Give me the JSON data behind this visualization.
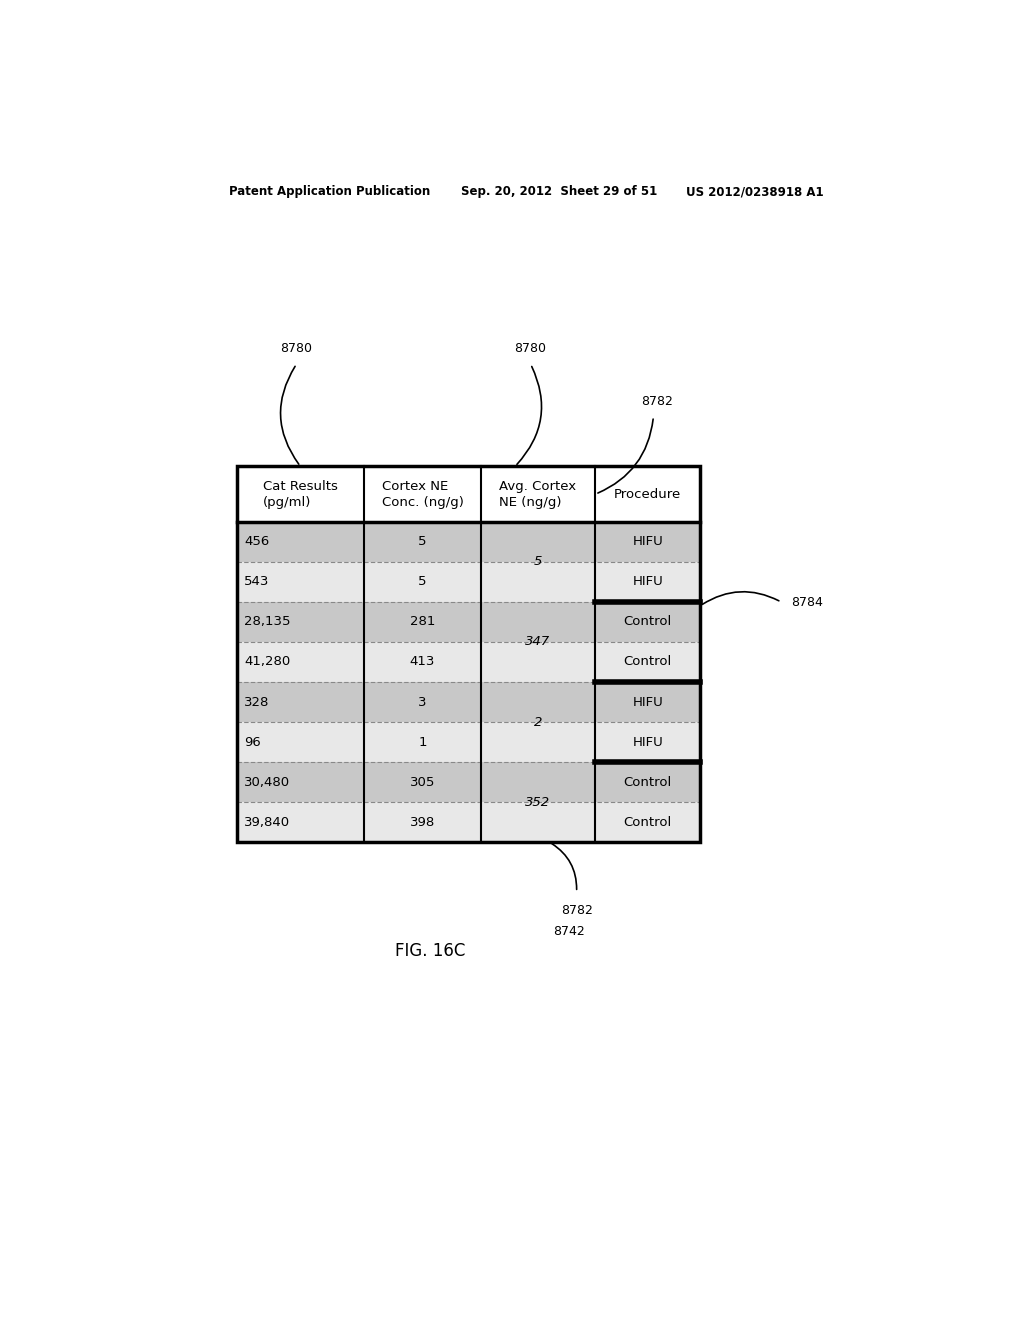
{
  "header_text_left": "Patent Application Publication",
  "header_text_mid": "Sep. 20, 2012  Sheet 29 of 51",
  "header_text_right": "US 2012/0238918 A1",
  "figure_label": "FIG. 16C",
  "table_headers": [
    "Cat Results\n(pg/ml)",
    "Cortex NE\nConc. (ng/g)",
    "Avg. Cortex\nNE (ng/g)",
    "Procedure"
  ],
  "col1_data": [
    "456",
    "543",
    "28,135",
    "41,280",
    "328",
    "96",
    "30,480",
    "39,840"
  ],
  "col2_data": [
    "5",
    "5",
    "281",
    "413",
    "3",
    "1",
    "305",
    "398"
  ],
  "avg_groups": [
    {
      "rows": [
        0,
        1
      ],
      "avg": "5"
    },
    {
      "rows": [
        2,
        3
      ],
      "avg": "347"
    },
    {
      "rows": [
        4,
        5
      ],
      "avg": "2"
    },
    {
      "rows": [
        6,
        7
      ],
      "avg": "352"
    }
  ],
  "col4_data": [
    "HIFU",
    "HIFU",
    "Control",
    "Control",
    "HIFU",
    "HIFU",
    "Control",
    "Control"
  ],
  "thick_after_rows": [
    1,
    3,
    5
  ],
  "bg_color": "#ffffff",
  "gray_color": "#cccccc",
  "label_8780_1": "8780",
  "label_8780_2": "8780",
  "label_8782_top": "8782",
  "label_8784": "8784",
  "label_8782_bot": "8782",
  "label_8742": "8742"
}
